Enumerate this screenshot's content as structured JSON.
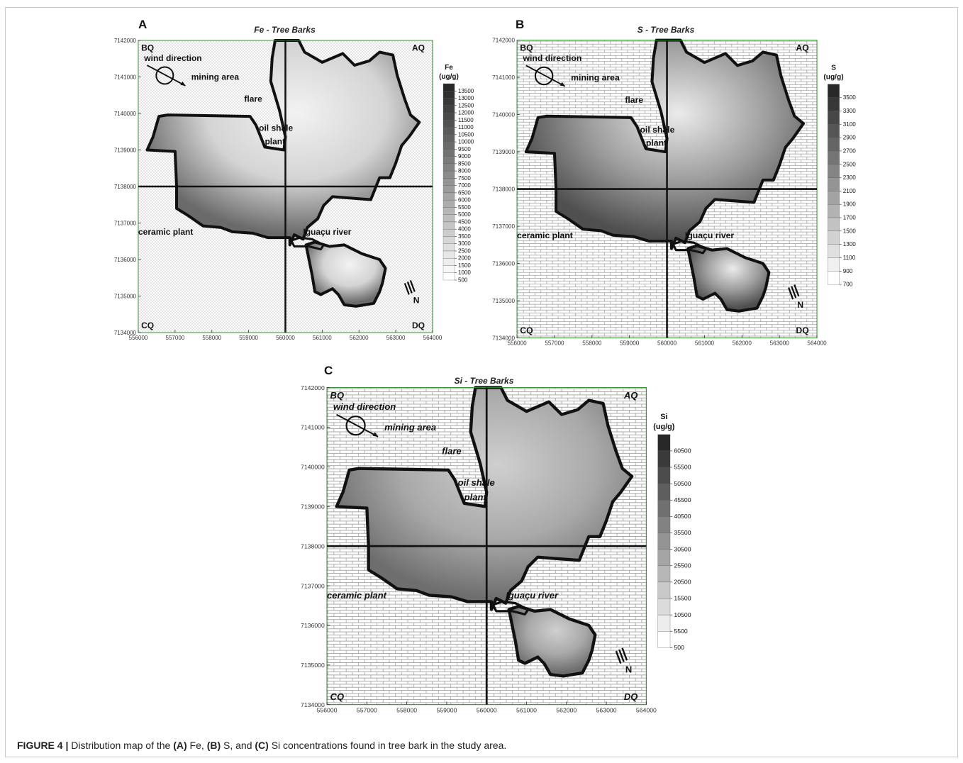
{
  "figure": {
    "caption_label": "FIGURE 4 |",
    "caption_parts": [
      {
        "text": " Distribution map of the ",
        "bold": false
      },
      {
        "text": "(A)",
        "bold": true
      },
      {
        "text": " Fe, ",
        "bold": false
      },
      {
        "text": "(B)",
        "bold": true
      },
      {
        "text": " S, and ",
        "bold": false
      },
      {
        "text": "(C)",
        "bold": true
      },
      {
        "text": " Si concentrations found in tree bark in the study area.",
        "bold": false
      }
    ]
  },
  "axes": {
    "x_ticks": [
      "556000",
      "557000",
      "558000",
      "559000",
      "560000",
      "561000",
      "562000",
      "563000",
      "564000"
    ],
    "y_ticks": [
      "7142000",
      "7141000",
      "7140000",
      "7139000",
      "7138000",
      "7137000",
      "7136000",
      "7135000",
      "7134000"
    ]
  },
  "map_labels": {
    "bq": "BQ",
    "aq": "AQ",
    "cq": "CQ",
    "dq": "DQ",
    "wind": "wind direction",
    "mining": "mining area",
    "flare": "flare",
    "oil1": "oil shale",
    "oil2": "plant",
    "ceramic": "ceramic plant",
    "river": "Iguaçu river",
    "north": "N"
  },
  "panels": [
    {
      "letter": "A",
      "title": "Fe - Tree Barks",
      "pattern": "dots",
      "legend_title1": "Fe",
      "legend_title2": "(ug/g)",
      "legend_values": [
        "13500",
        "13000",
        "12500",
        "12000",
        "11500",
        "11000",
        "10500",
        "10000",
        "9500",
        "9000",
        "8500",
        "8000",
        "7500",
        "7000",
        "6500",
        "6000",
        "5500",
        "5000",
        "4500",
        "4000",
        "3500",
        "3000",
        "2500",
        "2000",
        "1500",
        "1000",
        "500"
      ],
      "colors": {
        "fill": "#d4d4d4",
        "dark": "#6a6a6a",
        "light": "#f2f2f2"
      }
    },
    {
      "letter": "B",
      "title": "S - Tree Barks",
      "pattern": "bricks",
      "legend_title1": "S",
      "legend_title2": "(ug/g)",
      "legend_values": [
        "3500",
        "3300",
        "3100",
        "2900",
        "2700",
        "2500",
        "2300",
        "2100",
        "1900",
        "1700",
        "1500",
        "1300",
        "1100",
        "900",
        "700"
      ],
      "colors": {
        "fill": "#9c9c9c",
        "dark": "#4f4f4f",
        "light": "#ebebeb"
      }
    },
    {
      "letter": "C",
      "title": "Si - Tree Barks",
      "pattern": "bricks",
      "legend_title1": "Si",
      "legend_title2": "(ug/g)",
      "legend_values": [
        "60500",
        "55500",
        "50500",
        "45500",
        "40500",
        "35500",
        "30500",
        "25500",
        "20500",
        "15500",
        "10500",
        "5500",
        "500"
      ],
      "colors": {
        "fill": "#a9a9a9",
        "dark": "#6e6e6e",
        "light": "#cfcfcf"
      }
    }
  ]
}
